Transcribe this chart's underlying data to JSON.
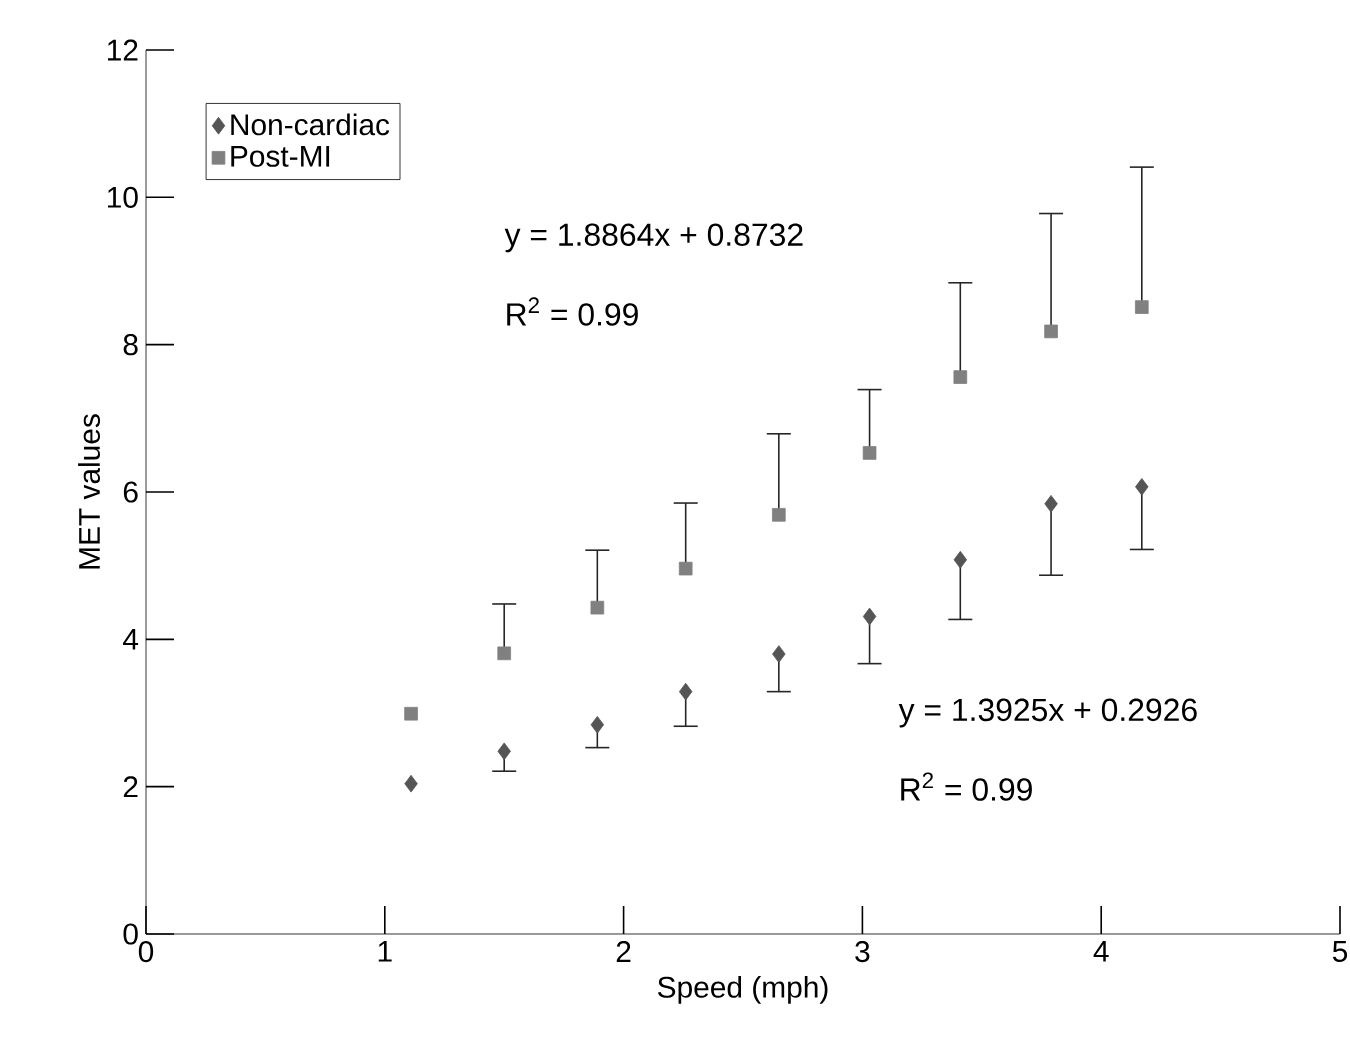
{
  "chart_data": {
    "type": "scatter",
    "xlabel": "Speed (mph)",
    "ylabel": "MET values",
    "x": [
      1.11,
      1.5,
      1.89,
      2.26,
      2.65,
      3.03,
      3.41,
      3.79,
      4.17
    ],
    "series": [
      {
        "name": "Non-cardiac",
        "color": "#555555",
        "marker": "diamond",
        "values": [
          2.04,
          2.48,
          2.84,
          3.29,
          3.8,
          4.31,
          5.08,
          5.84,
          6.07
        ],
        "errors": [
          null,
          [
            2.21,
            2.48
          ],
          [
            2.53,
            2.84
          ],
          [
            2.82,
            3.29
          ],
          [
            3.29,
            3.8
          ],
          [
            3.67,
            4.31
          ],
          [
            4.27,
            5.08
          ],
          [
            4.87,
            5.84
          ],
          [
            5.22,
            6.07
          ]
        ]
      },
      {
        "name": "Post-MI",
        "color": "#808080",
        "marker": "square",
        "values": [
          2.99,
          3.81,
          4.43,
          4.96,
          5.69,
          6.53,
          7.56,
          8.18,
          8.51
        ],
        "errors": [
          null,
          [
            3.81,
            4.48
          ],
          [
            4.43,
            5.21
          ],
          [
            4.96,
            5.85
          ],
          [
            5.69,
            6.79
          ],
          [
            6.53,
            7.39
          ],
          [
            7.56,
            8.84
          ],
          [
            8.18,
            9.78
          ],
          [
            8.51,
            10.41
          ]
        ]
      }
    ],
    "annotations": [
      "y = 1.8864x + 0.8732",
      "R$^{2}$ = 0.99",
      "y = 1.3925x + 0.2926",
      "R$^{2}$ = 0.99"
    ],
    "xlim": [
      0,
      5
    ],
    "xticks": [
      0,
      1,
      2,
      3,
      4,
      5
    ],
    "ylim": [
      0,
      12
    ],
    "yticks": [
      0,
      2,
      4,
      6,
      8,
      10,
      12
    ],
    "legend": "top left"
  }
}
